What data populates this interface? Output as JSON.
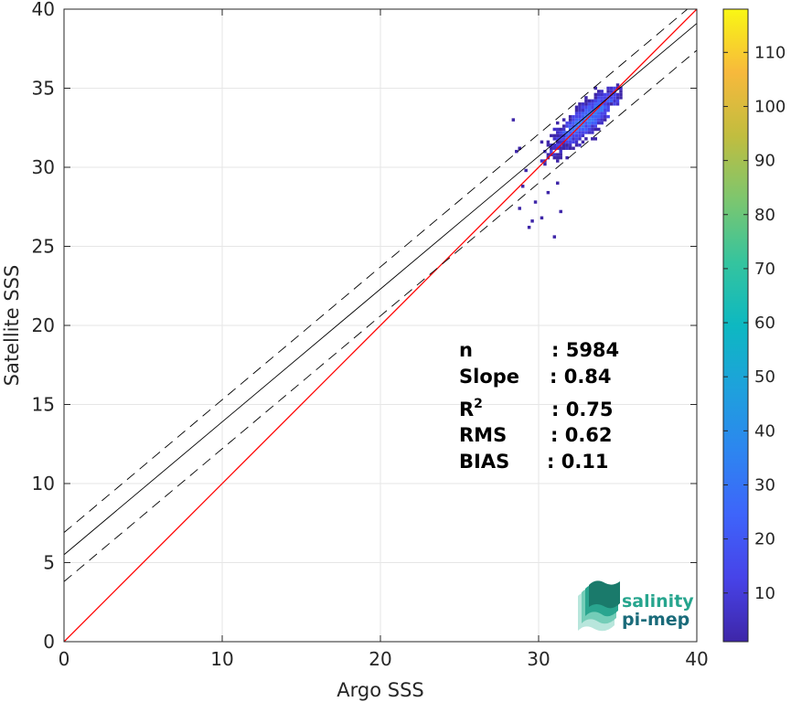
{
  "chart_data": {
    "type": "heatmap",
    "xlabel": "Argo SSS",
    "ylabel": "Satellite SSS",
    "xlim": [
      0,
      40
    ],
    "ylim": [
      0,
      40
    ],
    "xticks": [
      "0",
      "10",
      "20",
      "30",
      "40"
    ],
    "yticks": [
      "0",
      "5",
      "10",
      "15",
      "20",
      "25",
      "30",
      "35",
      "40"
    ],
    "grid": true,
    "colorbar": {
      "range": [
        1,
        118
      ],
      "ticks": [
        "10",
        "20",
        "30",
        "40",
        "50",
        "60",
        "70",
        "80",
        "90",
        "100",
        "110"
      ],
      "colormap": "parula"
    },
    "lines": [
      {
        "kind": "identity",
        "color": "#ff0000",
        "slope": 1.0,
        "intercept": 0.0
      },
      {
        "kind": "fit",
        "color": "#000000",
        "slope": 0.84,
        "intercept": 5.5
      },
      {
        "kind": "fit-upper",
        "color": "#000000",
        "dashed": true,
        "slope": 0.84,
        "intercept": 6.9
      },
      {
        "kind": "fit-lower",
        "color": "#000000",
        "dashed": true,
        "slope": 0.84,
        "intercept": 3.8
      }
    ],
    "density_cluster": {
      "x_range": [
        28.5,
        35.5
      ],
      "y_range": [
        25.5,
        35.5
      ],
      "center": [
        33.0,
        33.0
      ]
    },
    "stats": [
      {
        "label": "n",
        "value": ": 5984"
      },
      {
        "label": "Slope",
        "value": ": 0.84"
      },
      {
        "label": "R2",
        "value": ": 0.75"
      },
      {
        "label": "RMS",
        "value": ": 0.62"
      },
      {
        "label": "BIAS",
        "value": ": 0.11"
      }
    ]
  },
  "logo": {
    "line1": "salinity",
    "line2": "pi-mep"
  }
}
